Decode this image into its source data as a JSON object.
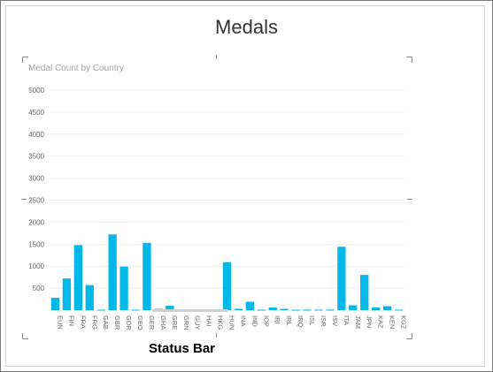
{
  "page": {
    "title": "Medals"
  },
  "visual": {
    "title": "Medal Count by Country"
  },
  "annotation": {
    "label": "Status Bar"
  },
  "colors": {
    "bar": "#01B8E8",
    "grid": "#efefef",
    "axis_text": "#666666",
    "status_bar": "#d0d0d0"
  },
  "chart_data": {
    "type": "bar",
    "title": "Medal Count by Country",
    "xlabel": "",
    "ylabel": "",
    "ylim": [
      0,
      5000
    ],
    "yticks": [
      500,
      1000,
      1500,
      2000,
      2500,
      3000,
      3500,
      4000,
      4500,
      5000
    ],
    "grid": true,
    "legend": "none",
    "categories": [
      "EUN",
      "FIN",
      "FRA",
      "FRG",
      "GAB",
      "GBR",
      "GDR",
      "GEO",
      "GER",
      "GHA",
      "GRE",
      "GRN",
      "GUY",
      "HAI",
      "HKG",
      "HUN",
      "INA",
      "IND",
      "IOP",
      "IRI",
      "IRL",
      "IRQ",
      "ISL",
      "ISR",
      "ISV",
      "ITA",
      "JAM",
      "JPN",
      "KAZ",
      "KEN",
      "KGZ"
    ],
    "values": [
      280,
      720,
      1480,
      570,
      10,
      1720,
      990,
      10,
      1530,
      30,
      100,
      10,
      10,
      10,
      10,
      1090,
      30,
      190,
      10,
      60,
      30,
      10,
      10,
      10,
      10,
      1440,
      110,
      800,
      60,
      90,
      10
    ]
  }
}
